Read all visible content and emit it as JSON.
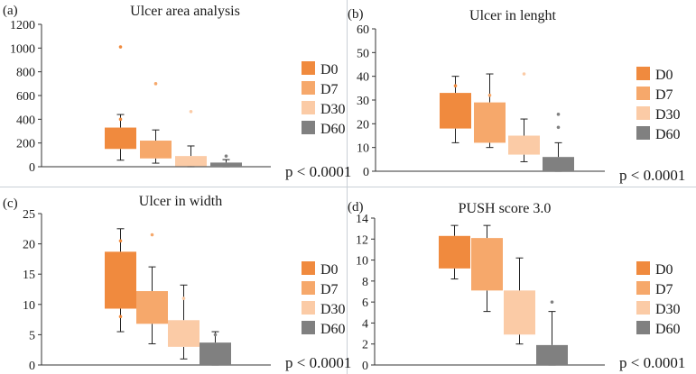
{
  "colors": {
    "D0": "#f08a3e",
    "D7": "#f6a86b",
    "D30": "#fbcba6",
    "D60": "#808080"
  },
  "legend": [
    "D0",
    "D7",
    "D30",
    "D60"
  ],
  "chart_data": [
    {
      "type": "box",
      "panel": "(a)",
      "title": "Ulcer area analysis",
      "annotation": "p < 0.0001",
      "ylim": [
        0,
        1200
      ],
      "yticks": [
        0,
        200,
        400,
        600,
        800,
        1000,
        1200
      ],
      "series": [
        {
          "name": "D0",
          "q1": 150,
          "q3": 330,
          "whisker_low": 55,
          "whisker_high": 440,
          "outliers": [
            1010,
            400
          ]
        },
        {
          "name": "D7",
          "q1": 70,
          "q3": 220,
          "whisker_low": 30,
          "whisker_high": 310,
          "outliers": [
            700
          ]
        },
        {
          "name": "D30",
          "q1": 5,
          "q3": 90,
          "whisker_low": 0,
          "whisker_high": 175,
          "outliers": [
            465
          ]
        },
        {
          "name": "D60",
          "q1": 0,
          "q3": 35,
          "whisker_low": 0,
          "whisker_high": 60,
          "outliers": [
            90
          ]
        }
      ]
    },
    {
      "type": "box",
      "panel": "(b)",
      "title": "Ulcer in lenght",
      "annotation": "p < 0.0001",
      "ylim": [
        0,
        60
      ],
      "yticks": [
        0,
        10,
        20,
        30,
        40,
        50,
        60
      ],
      "series": [
        {
          "name": "D0",
          "q1": 18,
          "q3": 33,
          "whisker_low": 12,
          "whisker_high": 40,
          "outliers": [
            36
          ]
        },
        {
          "name": "D7",
          "q1": 12,
          "q3": 29,
          "whisker_low": 10,
          "whisker_high": 41,
          "outliers": [
            32
          ]
        },
        {
          "name": "D30",
          "q1": 7,
          "q3": 15,
          "whisker_low": 4,
          "whisker_high": 22,
          "outliers": [
            41
          ]
        },
        {
          "name": "D60",
          "q1": 0,
          "q3": 6,
          "whisker_low": 0,
          "whisker_high": 12,
          "outliers": [
            24,
            18.5
          ]
        }
      ]
    },
    {
      "type": "box",
      "panel": "(c)",
      "title": "Ulcer in width",
      "annotation": "p < 0.0001",
      "ylim": [
        0,
        25
      ],
      "yticks": [
        0,
        5,
        10,
        15,
        20,
        25
      ],
      "series": [
        {
          "name": "D0",
          "q1": 9.3,
          "q3": 18.7,
          "whisker_low": 5.5,
          "whisker_high": 22.5,
          "outliers": [
            20.5,
            8
          ]
        },
        {
          "name": "D7",
          "q1": 6.8,
          "q3": 12.2,
          "whisker_low": 3.5,
          "whisker_high": 16.2,
          "outliers": [
            21.5
          ]
        },
        {
          "name": "D30",
          "q1": 3,
          "q3": 7.4,
          "whisker_low": 1,
          "whisker_high": 13.2,
          "outliers": [
            11
          ]
        },
        {
          "name": "D60",
          "q1": 0,
          "q3": 3.7,
          "whisker_low": 0,
          "whisker_high": 5.5,
          "outliers": [
            5
          ]
        }
      ]
    },
    {
      "type": "box",
      "panel": "(d)",
      "title": "PUSH score 3.0",
      "annotation": "p < 0.0001",
      "ylim": [
        0,
        14
      ],
      "yticks": [
        0,
        2,
        4,
        6,
        8,
        10,
        12,
        14
      ],
      "series": [
        {
          "name": "D0",
          "q1": 9.2,
          "q3": 12.3,
          "whisker_low": 8.2,
          "whisker_high": 13.3,
          "outliers": []
        },
        {
          "name": "D7",
          "q1": 7.1,
          "q3": 12.1,
          "whisker_low": 5.1,
          "whisker_high": 13.3,
          "outliers": []
        },
        {
          "name": "D30",
          "q1": 2.9,
          "q3": 7.1,
          "whisker_low": 2,
          "whisker_high": 10.2,
          "outliers": []
        },
        {
          "name": "D60",
          "q1": 0,
          "q3": 1.9,
          "whisker_low": 0,
          "whisker_high": 5.1,
          "outliers": [
            6
          ]
        }
      ]
    }
  ]
}
